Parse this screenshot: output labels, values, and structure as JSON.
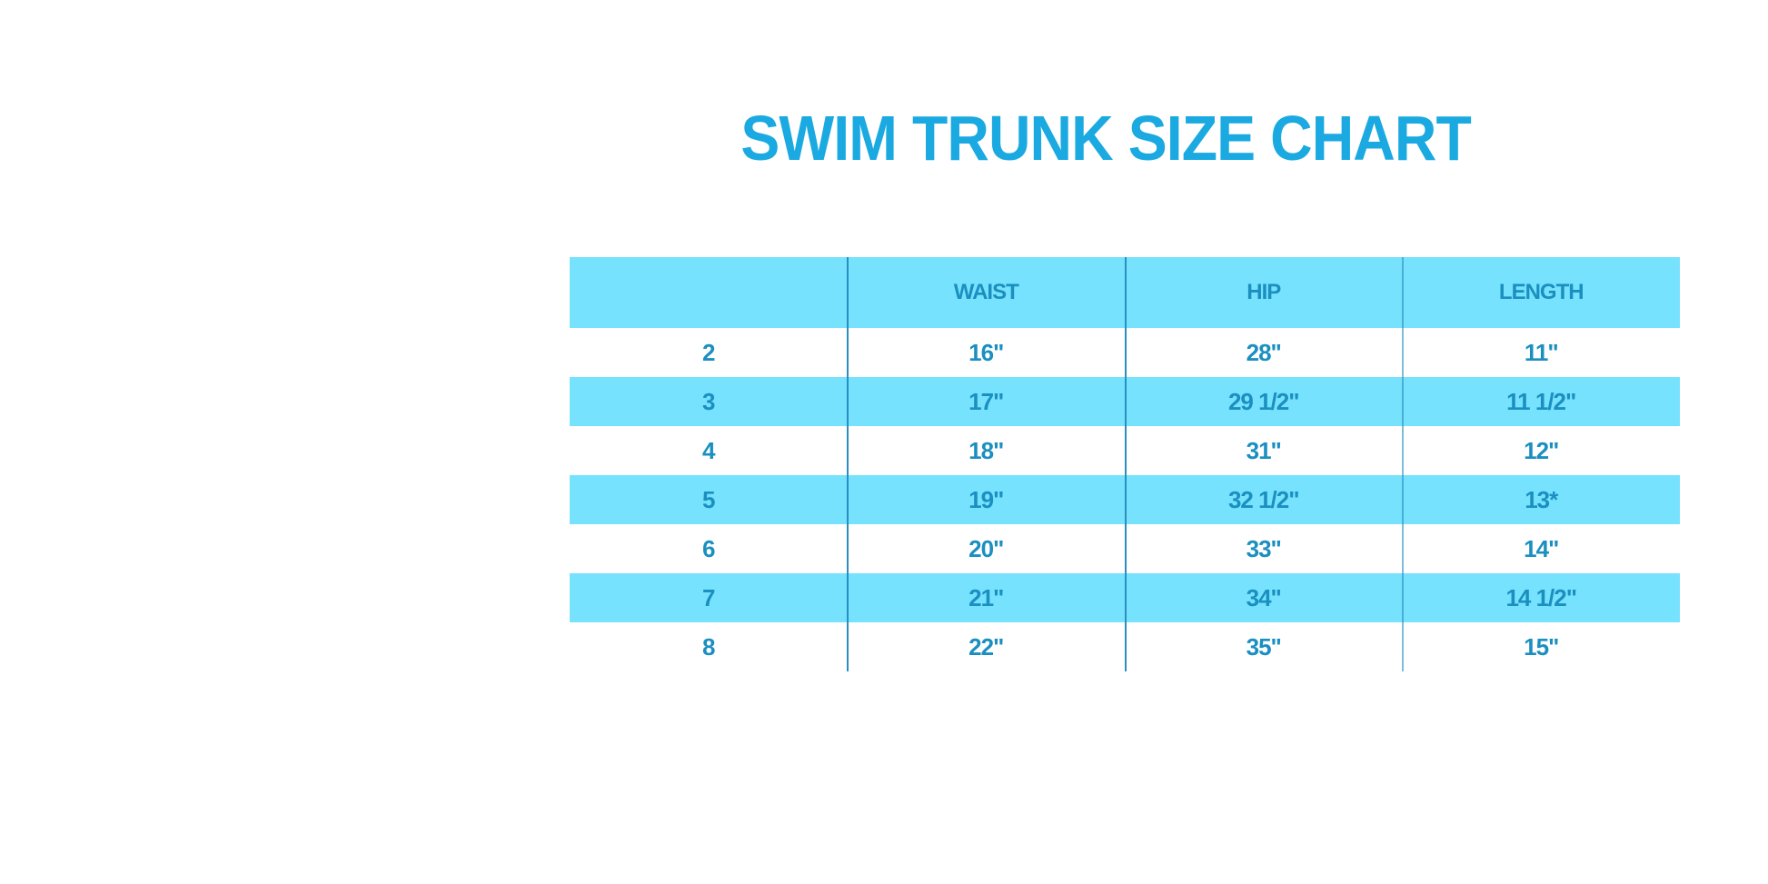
{
  "title": "SWIM TRUNK SIZE CHART",
  "colors": {
    "title": "#1aa9e0",
    "header_bg": "#76e2fd",
    "text": "#1a8fc0"
  },
  "table": {
    "headers": [
      "",
      "WAIST",
      "HIP",
      "LENGTH"
    ],
    "rows": [
      [
        "2",
        "16\"",
        "28\"",
        "11\""
      ],
      [
        "3",
        "17\"",
        "29 1/2\"",
        "11 1/2\""
      ],
      [
        "4",
        "18\"",
        "31\"",
        "12\""
      ],
      [
        "5",
        "19\"",
        "32 1/2\"",
        "13*"
      ],
      [
        "6",
        "20\"",
        "33\"",
        "14\""
      ],
      [
        "7",
        "21\"",
        "34\"",
        "14 1/2\""
      ],
      [
        "8",
        "22\"",
        "35\"",
        "15\""
      ]
    ]
  }
}
